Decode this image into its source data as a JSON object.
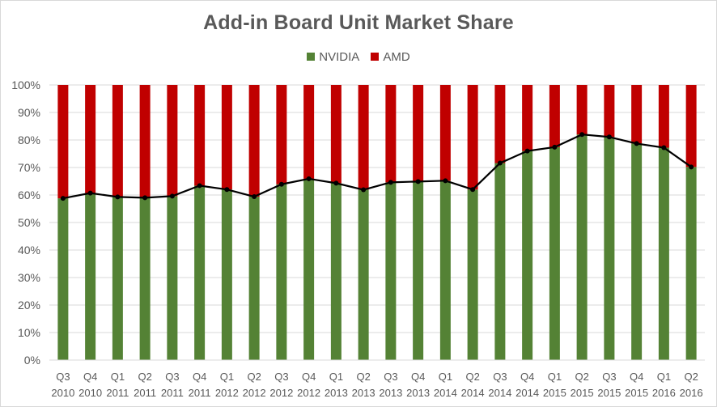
{
  "chart_data": {
    "type": "bar",
    "stacked": true,
    "title": "Add-in Board Unit Market Share",
    "xlabel": "",
    "ylabel": "",
    "ylim": [
      0,
      1
    ],
    "y_ticks": [
      "0%",
      "10%",
      "20%",
      "30%",
      "40%",
      "50%",
      "60%",
      "70%",
      "80%",
      "90%",
      "100%"
    ],
    "grid": true,
    "legend_position": "top",
    "categories": [
      [
        "Q3",
        "2010"
      ],
      [
        "Q4",
        "2010"
      ],
      [
        "Q1",
        "2011"
      ],
      [
        "Q2",
        "2011"
      ],
      [
        "Q3",
        "2011"
      ],
      [
        "Q4",
        "2011"
      ],
      [
        "Q1",
        "2012"
      ],
      [
        "Q2",
        "2012"
      ],
      [
        "Q3",
        "2012"
      ],
      [
        "Q4",
        "2012"
      ],
      [
        "Q1",
        "2013"
      ],
      [
        "Q2",
        "2013"
      ],
      [
        "Q3",
        "2013"
      ],
      [
        "Q4",
        "2013"
      ],
      [
        "Q1",
        "2014"
      ],
      [
        "Q2",
        "2014"
      ],
      [
        "Q3",
        "2014"
      ],
      [
        "Q4",
        "2014"
      ],
      [
        "Q1",
        "2015"
      ],
      [
        "Q2",
        "2015"
      ],
      [
        "Q3",
        "2015"
      ],
      [
        "Q4",
        "2015"
      ],
      [
        "Q1",
        "2016"
      ],
      [
        "Q2",
        "2016"
      ]
    ],
    "series": [
      {
        "name": "NVIDIA",
        "color": "#548235",
        "values": [
          0.588,
          0.607,
          0.593,
          0.59,
          0.596,
          0.634,
          0.62,
          0.594,
          0.639,
          0.659,
          0.643,
          0.619,
          0.646,
          0.649,
          0.652,
          0.62,
          0.716,
          0.76,
          0.774,
          0.82,
          0.811,
          0.787,
          0.772,
          0.702
        ]
      },
      {
        "name": "AMD",
        "color": "#c00000",
        "values": [
          0.412,
          0.393,
          0.407,
          0.41,
          0.404,
          0.366,
          0.38,
          0.406,
          0.361,
          0.341,
          0.357,
          0.381,
          0.354,
          0.351,
          0.348,
          0.38,
          0.284,
          0.24,
          0.226,
          0.18,
          0.189,
          0.213,
          0.228,
          0.298
        ]
      }
    ],
    "trend_line": {
      "of_series": "NVIDIA",
      "line_color": "#000000",
      "marker": "dot"
    }
  }
}
